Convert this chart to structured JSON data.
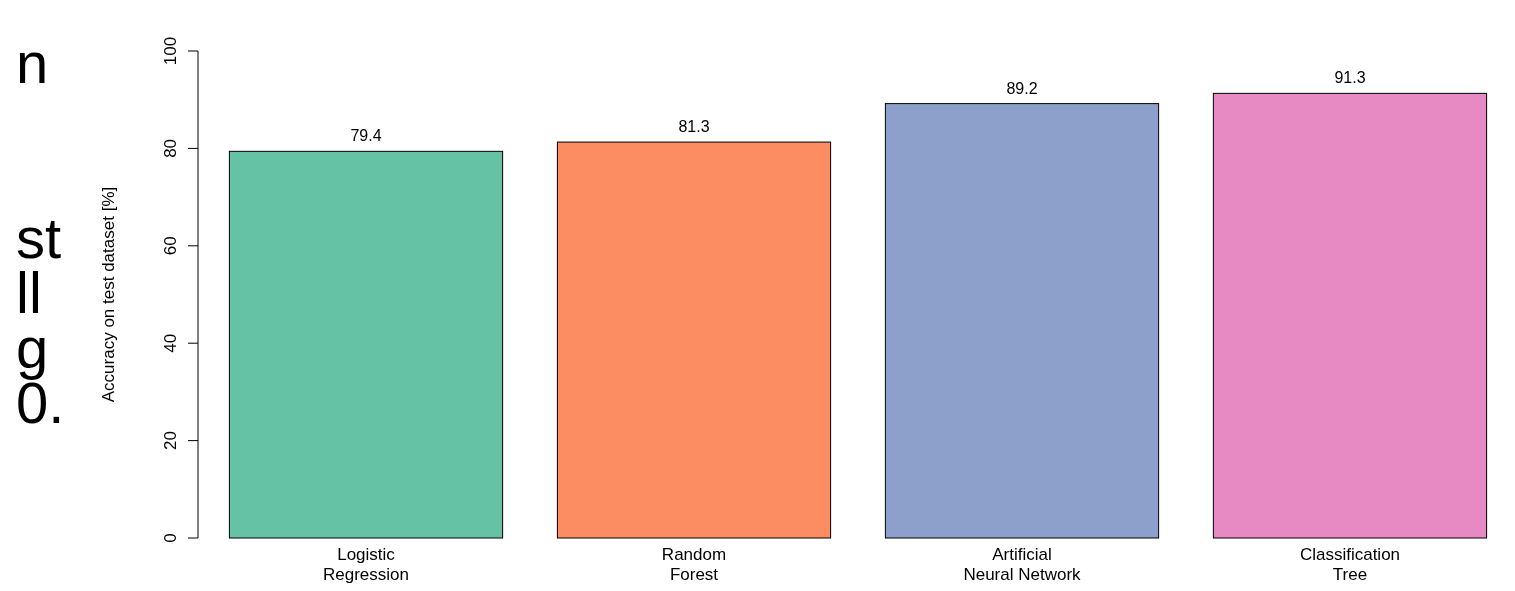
{
  "chart_data": {
    "type": "bar",
    "ylabel": "Accuracy on test dataset [%]",
    "categories": [
      "Logistic\nRegression",
      "Random\nForest",
      "Artificial\nNeural Network",
      "Classification\nTree"
    ],
    "values": [
      79.4,
      81.3,
      89.2,
      91.3
    ],
    "colors": [
      "#66c2a5",
      "#fc8d62",
      "#8da0cb",
      "#e78ac3"
    ],
    "ylim": [
      0,
      100
    ],
    "yticks": [
      0,
      20,
      40,
      60,
      80,
      100
    ],
    "data_labels": true,
    "annotations": [
      "n",
      "st",
      "ll",
      "g",
      "0."
    ]
  }
}
